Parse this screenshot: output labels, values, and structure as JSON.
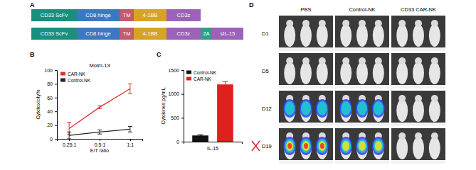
{
  "panel_labels": [
    "A",
    "B",
    "C",
    "D"
  ],
  "constructs": [
    {
      "domains": [
        {
          "label": "CD33 ScFv",
          "color": "#1b8f7e"
        },
        {
          "label": "CD8 hinge",
          "color": "#3b78c2"
        },
        {
          "label": "TM",
          "color": "#c25b6e"
        },
        {
          "label": "4-1BB",
          "color": "#d6a324"
        },
        {
          "label": "CD3z",
          "color": "#9b62b8"
        }
      ]
    },
    {
      "domains": [
        {
          "label": "CD33 ScFv",
          "color": "#1b8f7e"
        },
        {
          "label": "CD8 hinge",
          "color": "#3b78c2"
        },
        {
          "label": "TM",
          "color": "#c25b6e"
        },
        {
          "label": "4-1BB",
          "color": "#d6a324"
        },
        {
          "label": "CD3z",
          "color": "#9b62b8"
        },
        {
          "label": "2A",
          "color": "#2ea08a"
        },
        {
          "label": "sIL-15",
          "color": "#9b62b8"
        }
      ]
    }
  ],
  "chart_data": [
    {
      "type": "line",
      "title": "Molm-13",
      "x_label": "E/T ratio",
      "y_label": "Cytotoxicity%",
      "categories": [
        "0.25:1",
        "0.5:1",
        "1:1"
      ],
      "ylim": [
        0,
        100
      ],
      "yticks": [
        0,
        20,
        40,
        60,
        80,
        100
      ],
      "legend": "upper left",
      "series": [
        {
          "name": "CAR-NK",
          "color": "#e0302a",
          "values": [
            15,
            46,
            73
          ],
          "errors": [
            9,
            2,
            7
          ]
        },
        {
          "name": "Control-NK",
          "color": "#222222",
          "values": [
            5,
            10,
            14
          ],
          "errors": [
            5,
            3,
            4
          ]
        }
      ]
    },
    {
      "type": "bar",
      "x_label": "IL-15",
      "y_label": "Cytokines pg/mL",
      "categories": [
        "Control-NK",
        "CAR-NK"
      ],
      "values": [
        130,
        1200
      ],
      "errors": [
        15,
        60
      ],
      "colors": [
        "#111111",
        "#e0201c"
      ],
      "ylim": [
        0,
        1500
      ],
      "yticks": [
        0,
        500,
        1000,
        1500
      ],
      "legend": "upper left",
      "tick_labels": "y"
    }
  ],
  "imaging": {
    "columns": [
      "PBS",
      "Control-NK",
      "CD33 CAR-NK"
    ],
    "rows": [
      {
        "label": "D1",
        "signal": [
          0,
          0,
          0
        ]
      },
      {
        "label": "D5",
        "signal": [
          0,
          0,
          0
        ]
      },
      {
        "label": "D12",
        "signal": [
          2,
          2,
          0
        ]
      },
      {
        "label": "D19",
        "signal": [
          4,
          3,
          0
        ]
      }
    ]
  }
}
